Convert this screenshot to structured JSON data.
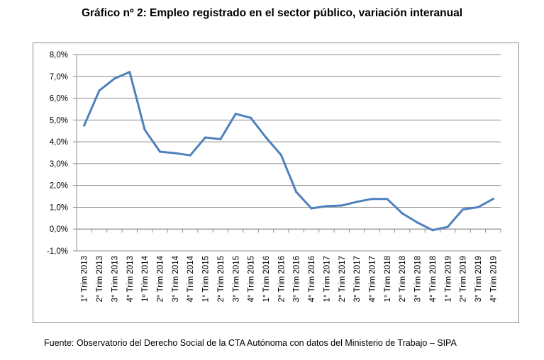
{
  "chart_data": {
    "type": "line",
    "title": "Gráfico nº 2: Empleo registrado en el sector público, variación interanual",
    "xlabel": "",
    "ylabel": "",
    "ylim": [
      -1.0,
      8.0
    ],
    "yticks": [
      8.0,
      7.0,
      6.0,
      5.0,
      4.0,
      3.0,
      2.0,
      1.0,
      0.0,
      -1.0
    ],
    "ytick_labels": [
      "8,0%",
      "7,0%",
      "6,0%",
      "5,0%",
      "4,0%",
      "3,0%",
      "2,0%",
      "1,0%",
      "0,0%",
      "-1,0%"
    ],
    "grid": true,
    "categories": [
      "1° Trim 2013",
      "2° Trim 2013",
      "3° Trim 2013",
      "4° Trim 2013",
      "1º Trim 2014",
      "2° Trim 2014",
      "3° Trim 2014",
      "4° Trim 2014",
      "1° Trim 2015",
      "2° Trim 2015",
      "3° Trim 2015",
      "4° Trim 2015",
      "1° Trim 2016",
      "2° Trim 2016",
      "3° Trim 2016",
      "4° Trim 2016",
      "1° Trim 2017",
      "2° Trim 2017",
      "3° Trim 2017",
      "4° Trim 2017",
      "1° Trim 2018",
      "2° Trim 2018",
      "3° Trim 2018",
      "4° Trim 2018",
      "1° Trim 2019",
      "2° Trim 2019",
      "3° Trim 2019",
      "4° Trim 2019"
    ],
    "series": [
      {
        "name": "Empleo registrado en el sector público",
        "color": "#4f81bd",
        "values": [
          4.75,
          6.35,
          6.9,
          7.2,
          4.55,
          3.55,
          3.48,
          3.38,
          4.2,
          4.12,
          5.28,
          5.1,
          4.2,
          3.4,
          1.7,
          0.95,
          1.05,
          1.08,
          1.25,
          1.38,
          1.38,
          0.72,
          0.3,
          -0.05,
          0.1,
          0.9,
          1.0,
          1.38
        ]
      }
    ],
    "colors": {
      "gridline": "#8c8c8c",
      "line": "#4f81bd"
    }
  },
  "source_note": "Fuente: Observatorio del Derecho Social de la CTA Autónoma con datos del Ministerio de Trabajo – SIPA"
}
